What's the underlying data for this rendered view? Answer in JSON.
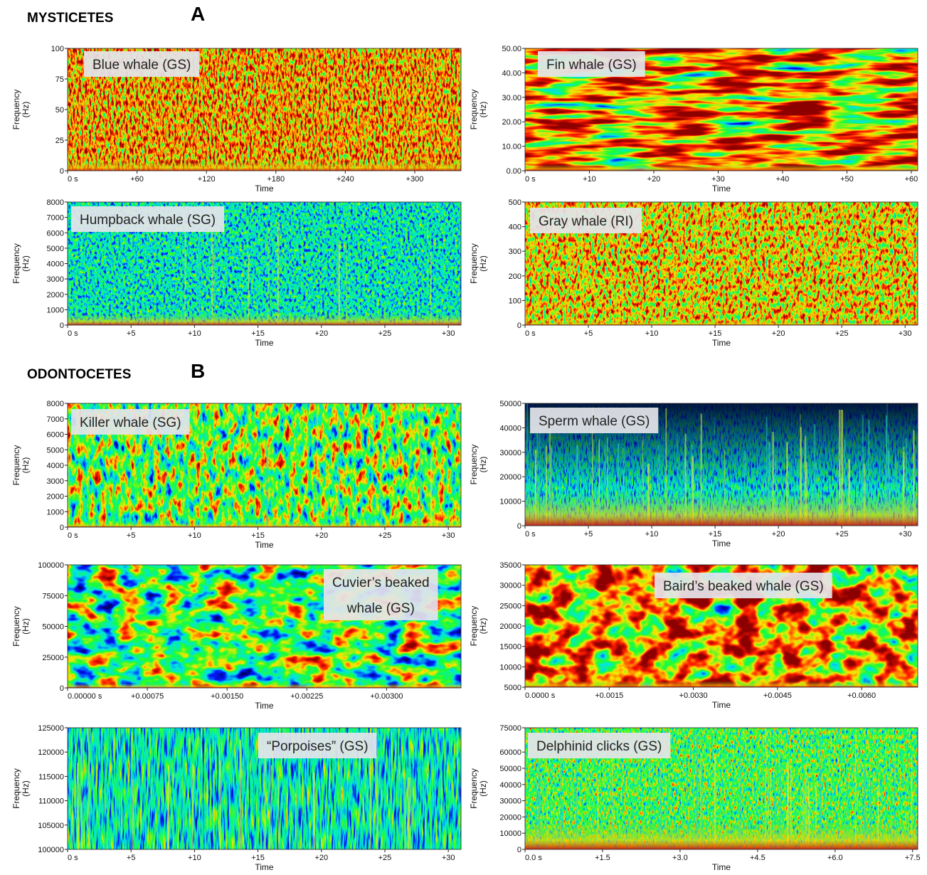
{
  "sections": [
    {
      "title": "MYSTICETES",
      "letter": "A"
    },
    {
      "title": "ODONTOCETES",
      "letter": "B"
    }
  ],
  "chart_data": [
    {
      "type": "spectrogram",
      "label": [
        "Blue whale (GS)"
      ],
      "ylabel": "Frequency",
      "yunit": "(Hz)",
      "xlabel": "Time",
      "ylim": [
        0,
        100
      ],
      "yticks": [
        0,
        25,
        50,
        75,
        100
      ],
      "xlim": [
        0,
        340
      ],
      "xticks": [
        {
          "value": 0,
          "label": "0 s"
        },
        {
          "value": 60,
          "label": "+60"
        },
        {
          "value": 120,
          "label": "+120"
        },
        {
          "value": 180,
          "label": "+180"
        },
        {
          "value": 240,
          "label": "+240"
        },
        {
          "value": 300,
          "label": "+300"
        }
      ]
    },
    {
      "type": "spectrogram",
      "label": [
        "Fin whale (GS)"
      ],
      "ylabel": "Frequency",
      "yunit": "(Hz)",
      "xlabel": "Time",
      "ylim": [
        0,
        50
      ],
      "yticks": [
        {
          "value": 0,
          "label": "0.00"
        },
        {
          "value": 10,
          "label": "10.00"
        },
        {
          "value": 20,
          "label": "20.00"
        },
        {
          "value": 30,
          "label": "30.00"
        },
        {
          "value": 40,
          "label": "40.00"
        },
        {
          "value": 50,
          "label": "50.00"
        }
      ],
      "xlim": [
        0,
        61
      ],
      "xticks": [
        {
          "value": 0,
          "label": "0 s"
        },
        {
          "value": 10,
          "label": "+10"
        },
        {
          "value": 20,
          "label": "+20"
        },
        {
          "value": 30,
          "label": "+30"
        },
        {
          "value": 40,
          "label": "+40"
        },
        {
          "value": 50,
          "label": "+50"
        },
        {
          "value": 60,
          "label": "+60"
        }
      ]
    },
    {
      "type": "spectrogram",
      "label": [
        "Humpback whale (SG)"
      ],
      "ylabel": "Frequency",
      "yunit": "(Hz)",
      "xlabel": "Time",
      "ylim": [
        0,
        8000
      ],
      "yticks": [
        0,
        1000,
        2000,
        3000,
        4000,
        5000,
        6000,
        7000,
        8000
      ],
      "xlim": [
        0,
        31
      ],
      "xticks": [
        {
          "value": 0,
          "label": "0 s"
        },
        {
          "value": 5,
          "label": "+5"
        },
        {
          "value": 10,
          "label": "+10"
        },
        {
          "value": 15,
          "label": "+15"
        },
        {
          "value": 20,
          "label": "+20"
        },
        {
          "value": 25,
          "label": "+25"
        },
        {
          "value": 30,
          "label": "+30"
        }
      ]
    },
    {
      "type": "spectrogram",
      "label": [
        "Gray whale (RI)"
      ],
      "ylabel": "Frequency",
      "yunit": "(Hz)",
      "xlabel": "Time",
      "ylim": [
        0,
        500
      ],
      "yticks": [
        0,
        100,
        200,
        300,
        400,
        500
      ],
      "xlim": [
        0,
        31
      ],
      "xticks": [
        {
          "value": 0,
          "label": "0 s"
        },
        {
          "value": 5,
          "label": "+5"
        },
        {
          "value": 10,
          "label": "+10"
        },
        {
          "value": 15,
          "label": "+15"
        },
        {
          "value": 20,
          "label": "+20"
        },
        {
          "value": 25,
          "label": "+25"
        },
        {
          "value": 30,
          "label": "+30"
        }
      ]
    },
    {
      "type": "spectrogram",
      "label": [
        "Killer whale (SG)"
      ],
      "ylabel": "Frequency",
      "yunit": "(Hz)",
      "xlabel": "Time",
      "ylim": [
        0,
        8000
      ],
      "yticks": [
        0,
        1000,
        2000,
        3000,
        4000,
        5000,
        6000,
        7000,
        8000
      ],
      "xlim": [
        0,
        31
      ],
      "xticks": [
        {
          "value": 0,
          "label": "0 s"
        },
        {
          "value": 5,
          "label": "+5"
        },
        {
          "value": 10,
          "label": "+10"
        },
        {
          "value": 15,
          "label": "+15"
        },
        {
          "value": 20,
          "label": "+20"
        },
        {
          "value": 25,
          "label": "+25"
        },
        {
          "value": 30,
          "label": "+30"
        }
      ]
    },
    {
      "type": "spectrogram",
      "label": [
        "Sperm whale (GS)"
      ],
      "ylabel": "Frequency",
      "yunit": "(Hz)",
      "xlabel": "Time",
      "ylim": [
        0,
        50000
      ],
      "yticks": [
        0,
        10000,
        20000,
        30000,
        40000,
        50000
      ],
      "xlim": [
        0,
        31
      ],
      "xticks": [
        {
          "value": 0,
          "label": "0 s"
        },
        {
          "value": 5,
          "label": "+5"
        },
        {
          "value": 10,
          "label": "+10"
        },
        {
          "value": 15,
          "label": "+15"
        },
        {
          "value": 20,
          "label": "+20"
        },
        {
          "value": 25,
          "label": "+25"
        },
        {
          "value": 30,
          "label": "+30"
        }
      ]
    },
    {
      "type": "spectrogram",
      "label": [
        "Cuvier’s beaked",
        "whale (GS)"
      ],
      "ylabel": "Frequency",
      "yunit": "(Hz)",
      "xlabel": "Time",
      "ylim": [
        0,
        100000
      ],
      "yticks": [
        0,
        25000,
        50000,
        75000,
        100000
      ],
      "xlim": [
        0,
        0.0037
      ],
      "xticks": [
        {
          "value": 0,
          "label": "0.00000 s"
        },
        {
          "value": 0.00075,
          "label": "+0.00075"
        },
        {
          "value": 0.0015,
          "label": "+0.00150"
        },
        {
          "value": 0.00225,
          "label": "+0.00225"
        },
        {
          "value": 0.003,
          "label": "+0.00300"
        }
      ]
    },
    {
      "type": "spectrogram",
      "label": [
        "Baird’s beaked whale (GS)"
      ],
      "ylabel": "Frequency",
      "yunit": "(Hz)",
      "xlabel": "Time",
      "ylim": [
        5000,
        35000
      ],
      "yticks": [
        5000,
        10000,
        15000,
        20000,
        25000,
        30000,
        35000
      ],
      "xlim": [
        0,
        0.007
      ],
      "xticks": [
        {
          "value": 0,
          "label": "0.0000 s"
        },
        {
          "value": 0.0015,
          "label": "+0.0015"
        },
        {
          "value": 0.003,
          "label": "+0.0030"
        },
        {
          "value": 0.0045,
          "label": "+0.0045"
        },
        {
          "value": 0.006,
          "label": "+0.0060"
        }
      ]
    },
    {
      "type": "spectrogram",
      "label": [
        "“Porpoises” (GS)"
      ],
      "ylabel": "Frequency",
      "yunit": "(Hz)",
      "xlabel": "Time",
      "ylim": [
        100000,
        125000
      ],
      "yticks": [
        100000,
        105000,
        110000,
        115000,
        120000,
        125000
      ],
      "xlim": [
        0,
        31
      ],
      "xticks": [
        {
          "value": 0,
          "label": "0 s"
        },
        {
          "value": 5,
          "label": "+5"
        },
        {
          "value": 10,
          "label": "+10"
        },
        {
          "value": 15,
          "label": "+15"
        },
        {
          "value": 20,
          "label": "+20"
        },
        {
          "value": 25,
          "label": "+25"
        },
        {
          "value": 30,
          "label": "+30"
        }
      ]
    },
    {
      "type": "spectrogram",
      "label": [
        "Delphinid clicks (GS)"
      ],
      "ylabel": "Frequency",
      "yunit": "(Hz)",
      "xlabel": "Time",
      "ylim": [
        0,
        75000
      ],
      "yticks": [
        0,
        10000,
        20000,
        30000,
        40000,
        50000,
        60000,
        75000
      ],
      "xlim": [
        0,
        7.6
      ],
      "xticks": [
        {
          "value": 0,
          "label": "0.0 s"
        },
        {
          "value": 1.5,
          "label": "+1.5"
        },
        {
          "value": 3,
          "label": "+3.0"
        },
        {
          "value": 4.5,
          "label": "+4.5"
        },
        {
          "value": 6,
          "label": "+6.0"
        },
        {
          "value": 7.5,
          "label": "+7.5"
        }
      ]
    }
  ]
}
